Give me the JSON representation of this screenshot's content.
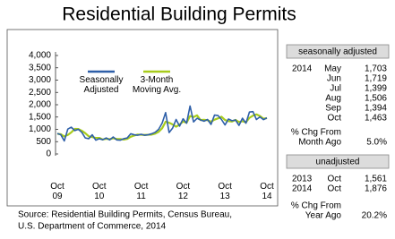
{
  "chart_data": {
    "type": "line",
    "title": "Residential Building Permits",
    "categories": [
      "Oct 09",
      null,
      null,
      null,
      null,
      null,
      null,
      null,
      null,
      null,
      null,
      null,
      "Oct 10",
      null,
      null,
      null,
      null,
      null,
      null,
      null,
      null,
      null,
      null,
      null,
      "Oct 11",
      null,
      null,
      null,
      null,
      null,
      null,
      null,
      null,
      null,
      null,
      null,
      "Oct 12",
      null,
      null,
      null,
      null,
      null,
      null,
      null,
      null,
      null,
      null,
      null,
      "Oct 13",
      null,
      null,
      null,
      null,
      null,
      null,
      null,
      null,
      null,
      null,
      null,
      "Oct 14"
    ],
    "series": [
      {
        "name": "Seasonally Adjusted",
        "color": "#2e5fa8",
        "values": [
          830,
          780,
          530,
          1010,
          1090,
          950,
          1000,
          880,
          650,
          620,
          780,
          560,
          620,
          580,
          650,
          570,
          690,
          570,
          560,
          620,
          650,
          820,
          780,
          760,
          800,
          760,
          780,
          820,
          880,
          1000,
          1250,
          1680,
          870,
          1050,
          1400,
          1130,
          1430,
          1250,
          1950,
          1300,
          1450,
          1380,
          1330,
          1400,
          1200,
          1580,
          1560,
          1400,
          1180,
          1420,
          1350,
          1380,
          1160,
          1450,
          1250,
          1703,
          1719,
          1399,
          1506,
          1394,
          1463
        ]
      },
      {
        "name": "3-Month Moving Avg.",
        "color": "#a8cc1c",
        "values": [
          820,
          800,
          713,
          773,
          877,
          1017,
          1013,
          943,
          843,
          717,
          683,
          653,
          653,
          587,
          617,
          600,
          637,
          610,
          607,
          583,
          610,
          697,
          750,
          787,
          780,
          773,
          780,
          787,
          827,
          900,
          1043,
          1310,
          1267,
          1200,
          1107,
          1193,
          1320,
          1270,
          1543,
          1500,
          1567,
          1377,
          1387,
          1370,
          1310,
          1393,
          1447,
          1513,
          1380,
          1333,
          1317,
          1383,
          1297,
          1330,
          1287,
          1468,
          1557,
          1607,
          1541,
          1433,
          1454
        ]
      }
    ],
    "ylim": [
      0,
      4000
    ],
    "yticks": [
      0,
      500,
      {
        "value": 1000,
        "label": "1,000"
      },
      {
        "value": 1500,
        "label": "1,500"
      },
      {
        "value": 2000,
        "label": "2,000"
      },
      {
        "value": 2500,
        "label": "2,500"
      },
      {
        "value": 3000,
        "label": "3,000"
      },
      {
        "value": 3500,
        "label": "3,500"
      },
      {
        "value": 4000,
        "label": "4,000"
      }
    ],
    "grid": false,
    "source": [
      "Source: Residential Building Permits, Census Bureau,",
      "U.S. Department of Commerce, 2014"
    ]
  },
  "panel": {
    "seasonally_adjusted": {
      "header": "seasonally adjusted",
      "rows": [
        {
          "year": "2014",
          "month": "May",
          "value": "1,703"
        },
        {
          "month": "Jun",
          "value": "1,719"
        },
        {
          "month": "Jul",
          "value": "1,399"
        },
        {
          "month": "Aug",
          "value": "1,506"
        },
        {
          "month": "Sep",
          "value": "1,394"
        },
        {
          "month": "Oct",
          "value": "1,463"
        }
      ],
      "change_label": [
        "% Chg From",
        "Month Ago"
      ],
      "change": "5.0%"
    },
    "unadjusted": {
      "header": "unadjusted",
      "rows": [
        {
          "year": "2013",
          "month": "Oct",
          "value": "1,561"
        },
        {
          "year": "2014",
          "month": "Oct",
          "value": "1,876"
        }
      ],
      "change_label": [
        "% Chg From",
        "Year Ago"
      ],
      "change": "20.2%"
    }
  }
}
